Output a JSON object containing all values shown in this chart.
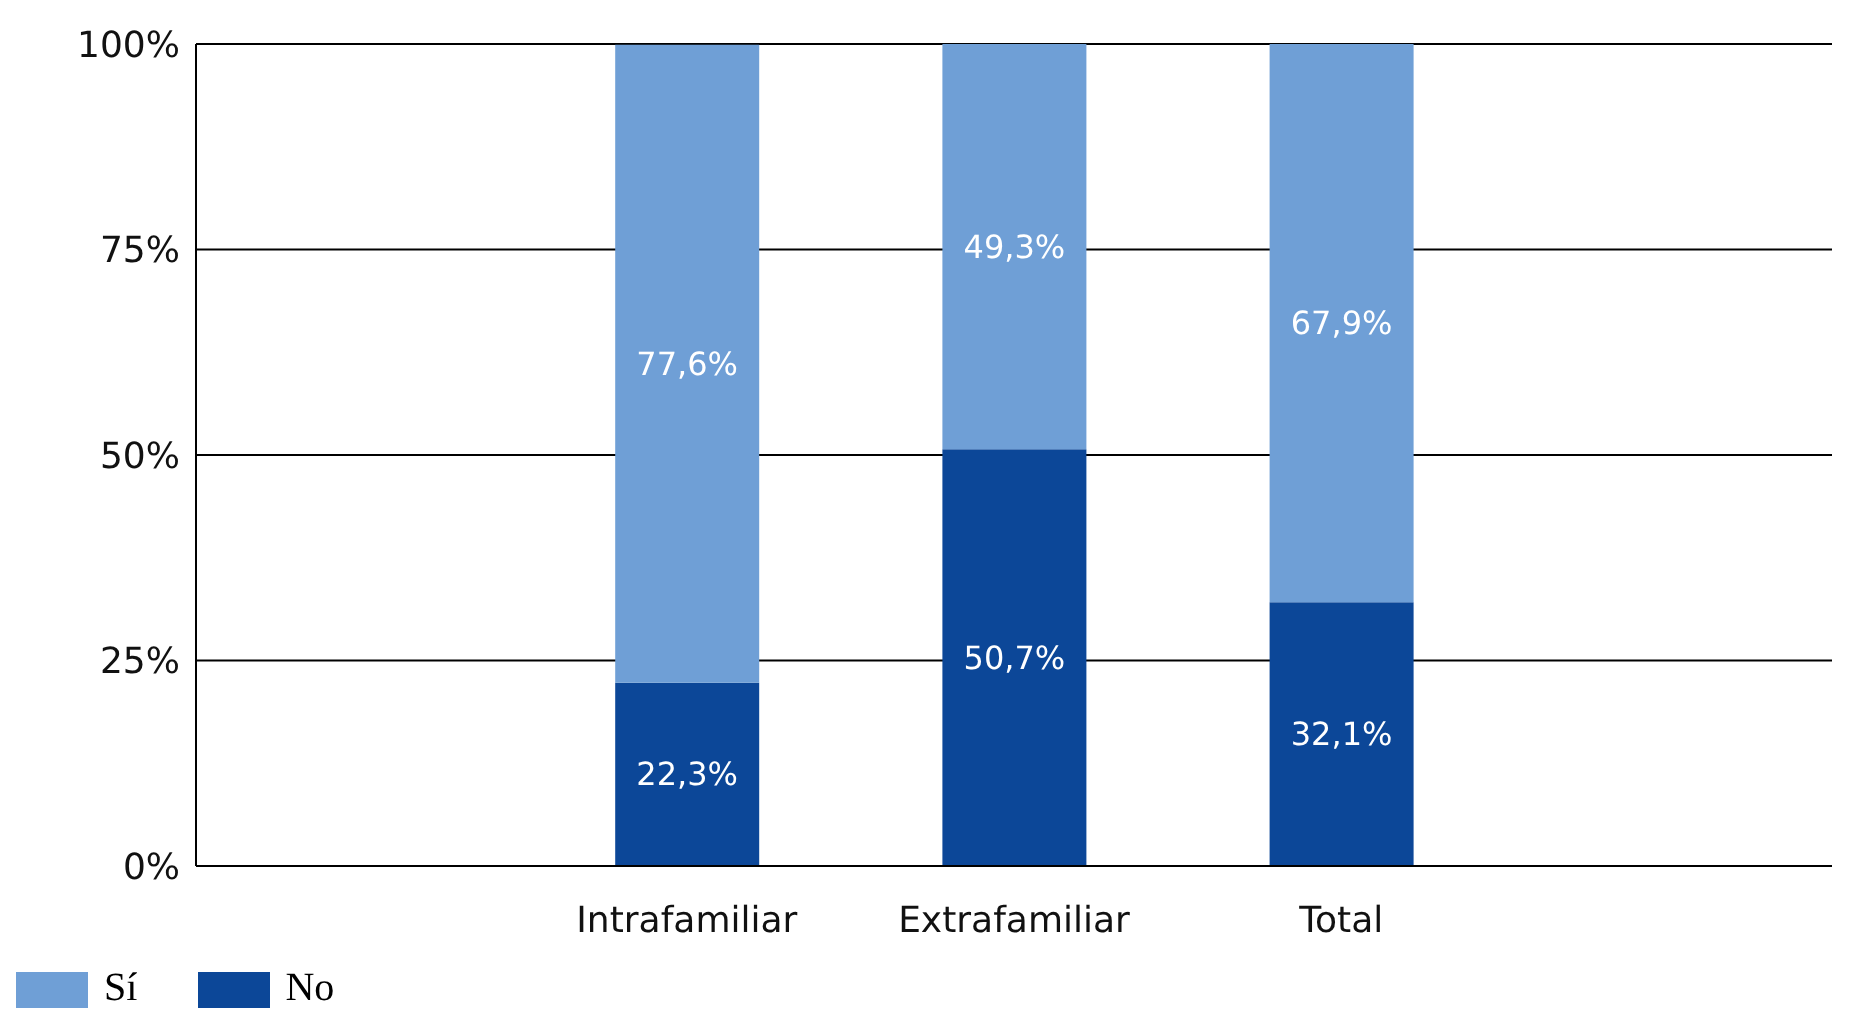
{
  "chart_data": {
    "type": "bar",
    "stacked": true,
    "categories": [
      null,
      "Intrafamiliar",
      "Extrafamiliar",
      "Total",
      null
    ],
    "series": [
      {
        "name": "No",
        "color": "#0c4798",
        "values": [
          null,
          22.3,
          50.7,
          32.1,
          null
        ],
        "value_labels": [
          null,
          "22,3%",
          "50,7%",
          "32,1%",
          null
        ]
      },
      {
        "name": "Sí",
        "color": "#6f9fd6",
        "values": [
          null,
          77.6,
          49.3,
          67.9,
          null
        ],
        "value_labels": [
          null,
          "77,6%",
          "49,3%",
          "67,9%",
          null
        ]
      }
    ],
    "ylim": [
      0,
      100
    ],
    "yticks": [
      {
        "value": 0,
        "label": "0%"
      },
      {
        "value": 25,
        "label": "25%"
      },
      {
        "value": 50,
        "label": "50%"
      },
      {
        "value": 75,
        "label": "75%"
      },
      {
        "value": 100,
        "label": "100%"
      }
    ],
    "grid": "y",
    "legend": "bottom left"
  }
}
